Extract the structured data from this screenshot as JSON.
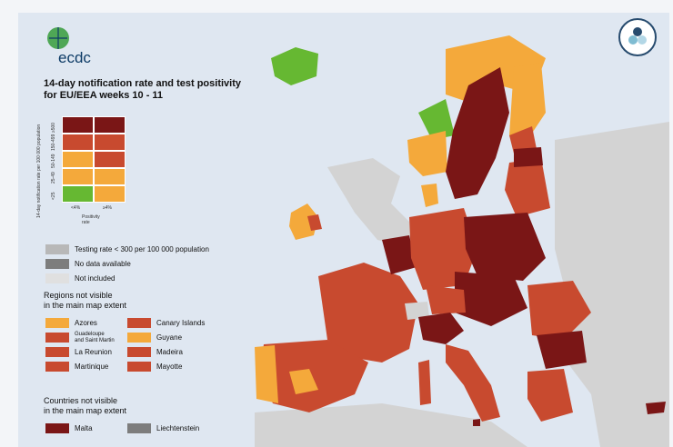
{
  "logo": {
    "text": "ecdc"
  },
  "title": "14-day notification rate and test positivity\nfor EU/EEA weeks 10 - 11",
  "matrix": {
    "ylabel": "14-day notification rate per 100 000 population",
    "ytick": [
      "<25",
      "25-49",
      "50-149",
      "150-499",
      "≥500"
    ],
    "xlabel": "Positivity rate",
    "xtick": [
      "<4%",
      "≥4%"
    ]
  },
  "legend": {
    "items": [
      {
        "label": "Testing rate < 300 per 100 000 population",
        "color": "#b8b8b8"
      },
      {
        "label": "No data available",
        "color": "#7d7d7d"
      },
      {
        "label": "Not included",
        "color": "#e0e0e0"
      }
    ]
  },
  "regions": {
    "header": "Regions not visible\nin the main map extent",
    "items": [
      {
        "label": "Azores",
        "color": "#f4a93b"
      },
      {
        "label": "Canary Islands",
        "color": "#c84a2f"
      },
      {
        "label": "Guadeloupe\nand Saint Martin",
        "color": "#c84a2f"
      },
      {
        "label": "Guyane",
        "color": "#f4a93b"
      },
      {
        "label": "La Reunion",
        "color": "#c84a2f"
      },
      {
        "label": "Madeira",
        "color": "#c84a2f"
      },
      {
        "label": "Martinique",
        "color": "#c84a2f"
      },
      {
        "label": "Mayotte",
        "color": "#c84a2f"
      }
    ]
  },
  "countries": {
    "header": "Countries not visible\nin the main map extent",
    "items": [
      {
        "label": "Malta",
        "color": "#7a1616"
      },
      {
        "label": "Liechtenstein",
        "color": "#7d7d7d"
      }
    ]
  },
  "colors": {
    "green": "#66b832",
    "orange": "#f4a93b",
    "red": "#c84a2f",
    "darkred": "#7a1616",
    "grey": "#d3d3d3",
    "sea": "#dfe7f1"
  }
}
